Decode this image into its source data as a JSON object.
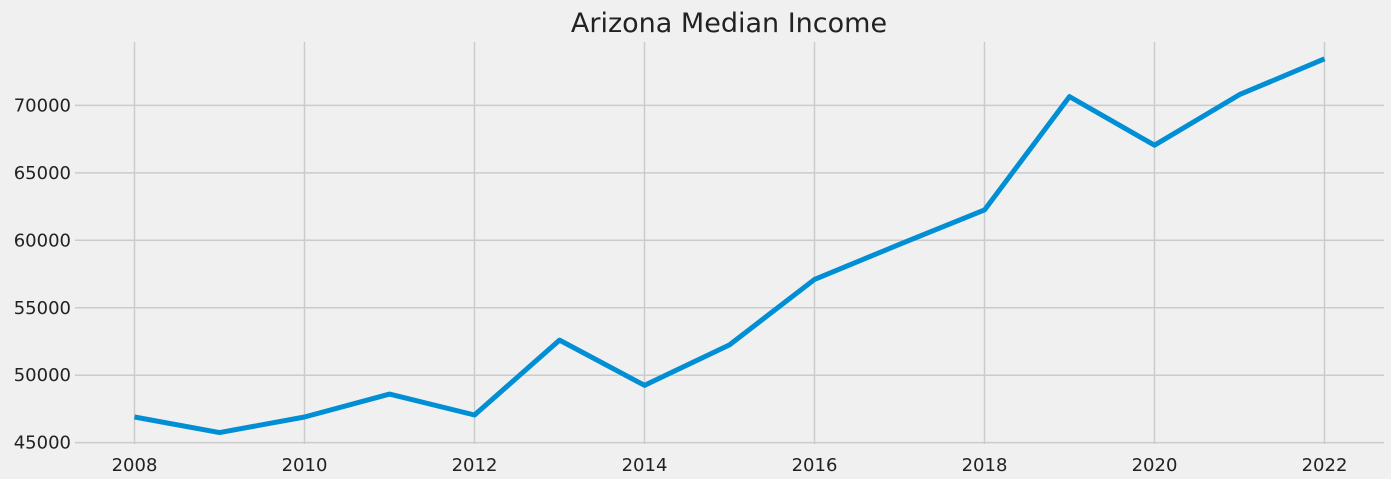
{
  "chart_data": {
    "type": "line",
    "title": "Arizona Median Income",
    "xlabel": "",
    "ylabel": "",
    "x": [
      2008,
      2009,
      2010,
      2011,
      2012,
      2013,
      2014,
      2015,
      2016,
      2017,
      2018,
      2019,
      2020,
      2021,
      2022
    ],
    "series": [
      {
        "values": [
          46900,
          45750,
          46900,
          48600,
          47050,
          52600,
          49250,
          52250,
          57100,
          59700,
          62250,
          70650,
          67050,
          70800,
          73450
        ]
      }
    ],
    "xlim": [
      2007.3,
      2022.7
    ],
    "ylim": [
      44900,
      74700
    ],
    "xticks": [
      2008,
      2010,
      2012,
      2014,
      2016,
      2018,
      2020,
      2022
    ],
    "yticks": [
      45000,
      50000,
      55000,
      60000,
      65000,
      70000
    ],
    "grid": true,
    "colors": {
      "background": "#f0f0f0",
      "grid": "#cbcbcb",
      "line": "#008fd5",
      "text": "#222222"
    }
  }
}
